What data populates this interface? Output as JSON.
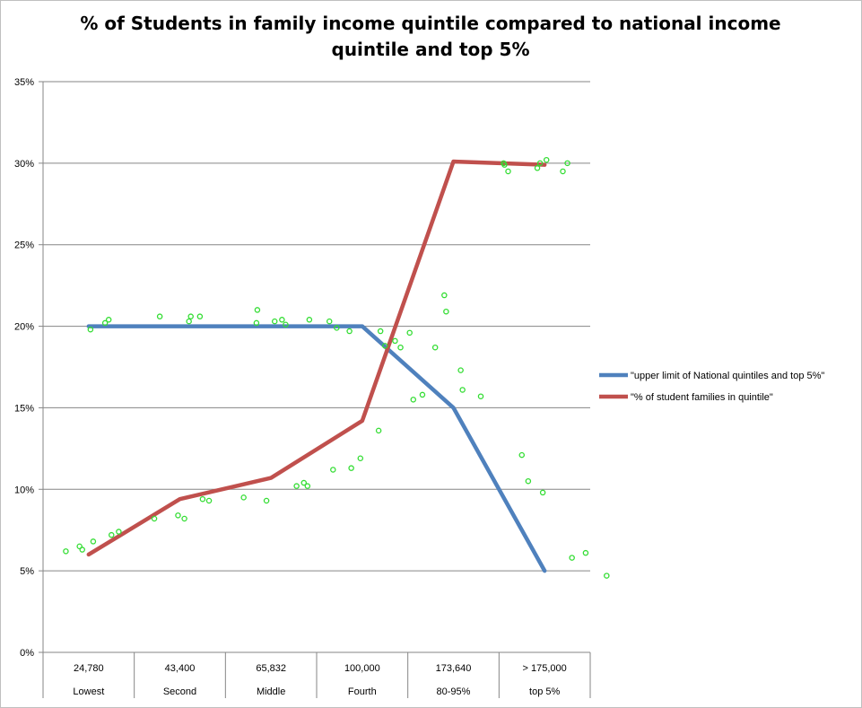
{
  "chart_data": {
    "type": "line",
    "title_line1": "% of Students in family income quintile compared to national income",
    "title_line2": "quintile and top 5%",
    "xlabel": "",
    "ylabel": "",
    "ylim": [
      0,
      35
    ],
    "y_ticks": [
      "0%",
      "5%",
      "10%",
      "15%",
      "20%",
      "25%",
      "30%",
      "35%"
    ],
    "categories": [
      {
        "value": "24,780",
        "name": "Lowest"
      },
      {
        "value": "43,400",
        "name": "Second"
      },
      {
        "value": "65,832",
        "name": "Middle"
      },
      {
        "value": "100,000",
        "name": "Fourth"
      },
      {
        "value": "173,640",
        "name": "80-95%"
      },
      {
        "value": "> 175,000",
        "name": "top 5%"
      }
    ],
    "grid": true,
    "legend_position": "right",
    "series": [
      {
        "name": "\"upper limit of National quintiles and top 5%\"",
        "color": "#4f81bd",
        "values": [
          20,
          20,
          20,
          20,
          15,
          5
        ]
      },
      {
        "name": "\"% of student families in quintile\"",
        "color": "#c0504d",
        "values": [
          6,
          9.4,
          10.7,
          14.2,
          30.1,
          29.9
        ]
      }
    ],
    "scatter_series": {
      "color": "#33dd33",
      "points": [
        [
          -0.25,
          6.2
        ],
        [
          -0.1,
          6.5
        ],
        [
          -0.07,
          6.3
        ],
        [
          0.02,
          19.8
        ],
        [
          0.05,
          6.8
        ],
        [
          0.18,
          20.2
        ],
        [
          0.22,
          20.4
        ],
        [
          0.25,
          7.2
        ],
        [
          0.33,
          7.4
        ],
        [
          0.72,
          8.2
        ],
        [
          0.78,
          20.6
        ],
        [
          0.98,
          8.4
        ],
        [
          1.05,
          8.2
        ],
        [
          1.1,
          20.3
        ],
        [
          1.12,
          20.6
        ],
        [
          1.22,
          20.6
        ],
        [
          1.25,
          9.4
        ],
        [
          1.32,
          9.3
        ],
        [
          1.7,
          9.5
        ],
        [
          1.85,
          21
        ],
        [
          1.84,
          20.2
        ],
        [
          1.95,
          9.3
        ],
        [
          2.04,
          20.3
        ],
        [
          2.12,
          20.4
        ],
        [
          2.16,
          20.1
        ],
        [
          2.28,
          10.2
        ],
        [
          2.36,
          10.4
        ],
        [
          2.4,
          10.2
        ],
        [
          2.42,
          20.4
        ],
        [
          2.64,
          20.3
        ],
        [
          2.68,
          11.2
        ],
        [
          2.72,
          19.9
        ],
        [
          2.86,
          19.7
        ],
        [
          2.88,
          11.3
        ],
        [
          2.98,
          11.9
        ],
        [
          3.18,
          13.6
        ],
        [
          3.2,
          19.7
        ],
        [
          3.25,
          18.8
        ],
        [
          3.36,
          19.1
        ],
        [
          3.42,
          18.7
        ],
        [
          3.52,
          19.6
        ],
        [
          3.56,
          15.5
        ],
        [
          3.66,
          15.8
        ],
        [
          3.8,
          18.7
        ],
        [
          3.9,
          21.9
        ],
        [
          3.92,
          20.9
        ],
        [
          4.08,
          17.3
        ],
        [
          4.1,
          16.1
        ],
        [
          4.3,
          15.7
        ],
        [
          4.55,
          30
        ],
        [
          4.56,
          29.9
        ],
        [
          4.6,
          29.5
        ],
        [
          4.75,
          12.1
        ],
        [
          4.82,
          10.5
        ],
        [
          4.92,
          29.7
        ],
        [
          4.95,
          30
        ],
        [
          4.98,
          9.8
        ],
        [
          5.02,
          30.2
        ],
        [
          5.2,
          29.5
        ],
        [
          5.25,
          30
        ],
        [
          5.3,
          5.8
        ],
        [
          5.45,
          6.1
        ],
        [
          5.68,
          4.7
        ]
      ]
    }
  }
}
